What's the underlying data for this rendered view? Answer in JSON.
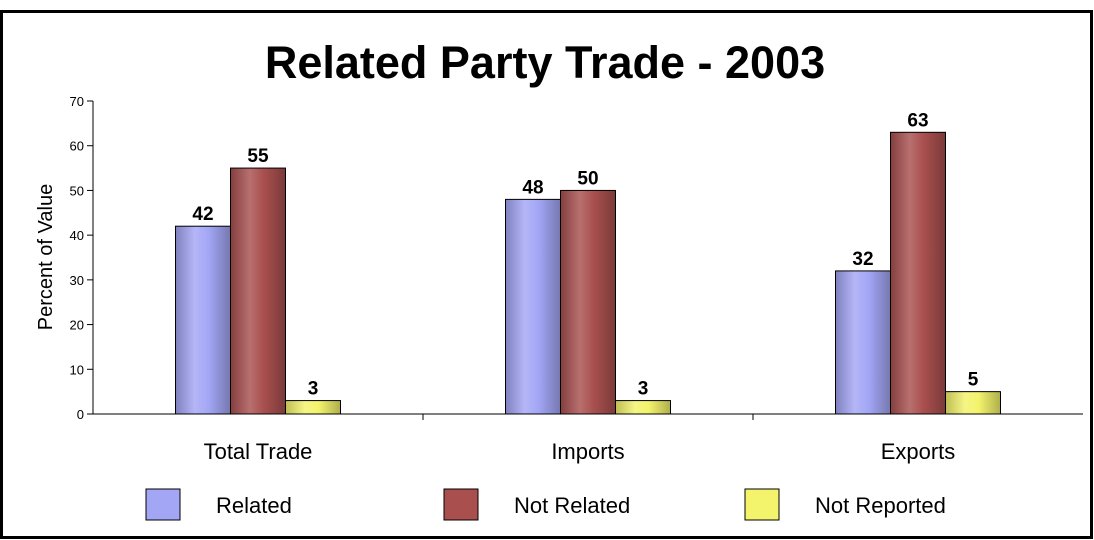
{
  "chart_data": {
    "type": "bar",
    "title": "Related Party Trade - 2003",
    "xlabel": "",
    "ylabel": "Percent of Value",
    "ylim": [
      0,
      70
    ],
    "yticks": [
      0,
      10,
      20,
      30,
      40,
      50,
      60,
      70
    ],
    "categories": [
      "Total Trade",
      "Imports",
      "Exports"
    ],
    "series": [
      {
        "name": "Related",
        "values": [
          42,
          48,
          32
        ],
        "color": "#a3a6f5"
      },
      {
        "name": "Not Related",
        "values": [
          55,
          50,
          63
        ],
        "color": "#a9504f"
      },
      {
        "name": "Not Reported",
        "values": [
          3,
          3,
          5
        ],
        "color": "#f3f36c"
      }
    ],
    "grid": false,
    "legend": "bottom",
    "data_labels": true
  }
}
